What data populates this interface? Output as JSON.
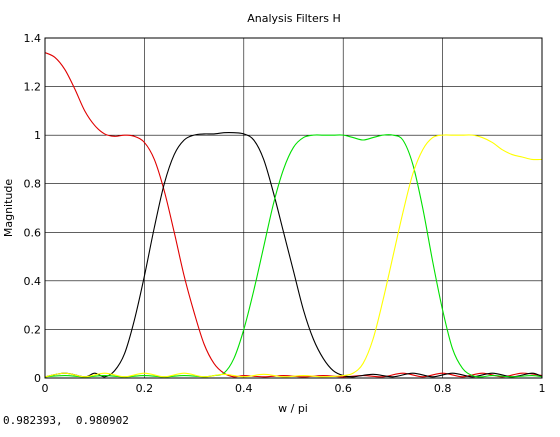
{
  "chart_data": {
    "type": "line",
    "title": "Analysis Filters H",
    "xlabel": "w / pi",
    "ylabel": "Magnitude",
    "xlim": [
      0,
      1
    ],
    "ylim": [
      0,
      1.4
    ],
    "xticks": [
      "0",
      "0.2",
      "0.4",
      "0.6",
      "0.8",
      "1"
    ],
    "yticks": [
      "0",
      "0.2",
      "0.4",
      "0.6",
      "0.8",
      "1",
      "1.2",
      "1.4"
    ],
    "grid": true,
    "legend": "none",
    "series": [
      {
        "color": "#e00000",
        "x": [
          0,
          0.02,
          0.04,
          0.06,
          0.08,
          0.1,
          0.12,
          0.14,
          0.16,
          0.18,
          0.2,
          0.22,
          0.24,
          0.26,
          0.28,
          0.3,
          0.32,
          0.34,
          0.36,
          0.38,
          0.4,
          0.44,
          0.48,
          0.52,
          0.56,
          0.6,
          0.64,
          0.68,
          0.72,
          0.76,
          0.8,
          0.84,
          0.88,
          0.92,
          0.96,
          1.0
        ],
        "values": [
          1.34,
          1.32,
          1.27,
          1.19,
          1.1,
          1.04,
          1.005,
          0.995,
          1.0,
          0.995,
          0.97,
          0.9,
          0.77,
          0.6,
          0.42,
          0.27,
          0.14,
          0.06,
          0.02,
          0.005,
          0.01,
          0.005,
          0.01,
          0.005,
          0.01,
          0.005,
          0.01,
          0.005,
          0.02,
          0.005,
          0.02,
          0.005,
          0.02,
          0.005,
          0.02,
          0.01
        ]
      },
      {
        "color": "#000000",
        "x": [
          0,
          0.04,
          0.08,
          0.1,
          0.12,
          0.14,
          0.16,
          0.18,
          0.2,
          0.22,
          0.24,
          0.26,
          0.28,
          0.3,
          0.32,
          0.34,
          0.36,
          0.38,
          0.4,
          0.42,
          0.44,
          0.46,
          0.48,
          0.5,
          0.52,
          0.54,
          0.56,
          0.58,
          0.6,
          0.62,
          0.66,
          0.7,
          0.74,
          0.78,
          0.82,
          0.86,
          0.9,
          0.94,
          0.98,
          1.0
        ],
        "values": [
          0.005,
          0.02,
          0.005,
          0.02,
          0.005,
          0.03,
          0.1,
          0.24,
          0.42,
          0.62,
          0.8,
          0.92,
          0.98,
          1.0,
          1.005,
          1.005,
          1.01,
          1.01,
          1.005,
          0.98,
          0.9,
          0.76,
          0.6,
          0.44,
          0.28,
          0.16,
          0.08,
          0.03,
          0.01,
          0.005,
          0.015,
          0.005,
          0.02,
          0.005,
          0.02,
          0.005,
          0.02,
          0.005,
          0.02,
          0.005
        ]
      },
      {
        "color": "#00e000",
        "x": [
          0,
          0.04,
          0.08,
          0.12,
          0.16,
          0.2,
          0.24,
          0.28,
          0.32,
          0.34,
          0.36,
          0.38,
          0.4,
          0.42,
          0.44,
          0.46,
          0.48,
          0.5,
          0.52,
          0.54,
          0.56,
          0.58,
          0.6,
          0.62,
          0.64,
          0.66,
          0.68,
          0.7,
          0.72,
          0.74,
          0.76,
          0.78,
          0.8,
          0.82,
          0.84,
          0.86,
          0.88,
          0.9,
          0.94,
          0.98,
          1.0
        ],
        "values": [
          0.005,
          0.01,
          0.005,
          0.01,
          0.005,
          0.01,
          0.005,
          0.01,
          0.005,
          0.01,
          0.02,
          0.08,
          0.2,
          0.36,
          0.54,
          0.72,
          0.86,
          0.95,
          0.99,
          1.0,
          1.0,
          1.0,
          1.0,
          0.99,
          0.98,
          0.99,
          1.0,
          1.0,
          0.98,
          0.88,
          0.7,
          0.48,
          0.28,
          0.12,
          0.04,
          0.01,
          0.005,
          0.01,
          0.005,
          0.01,
          0.005
        ]
      },
      {
        "color": "#ffff00",
        "x": [
          0,
          0.04,
          0.08,
          0.12,
          0.16,
          0.2,
          0.24,
          0.28,
          0.32,
          0.36,
          0.4,
          0.44,
          0.48,
          0.52,
          0.56,
          0.6,
          0.62,
          0.64,
          0.66,
          0.68,
          0.7,
          0.72,
          0.74,
          0.76,
          0.78,
          0.8,
          0.82,
          0.84,
          0.86,
          0.88,
          0.9,
          0.92,
          0.94,
          0.96,
          0.98,
          1.0
        ],
        "values": [
          0.005,
          0.02,
          0.005,
          0.02,
          0.005,
          0.02,
          0.005,
          0.02,
          0.005,
          0.015,
          0.005,
          0.015,
          0.005,
          0.01,
          0.005,
          0.01,
          0.02,
          0.06,
          0.16,
          0.32,
          0.5,
          0.68,
          0.84,
          0.94,
          0.99,
          1.0,
          1.0,
          1.0,
          1.0,
          0.99,
          0.97,
          0.94,
          0.92,
          0.91,
          0.9,
          0.9
        ]
      }
    ]
  },
  "status": {
    "readout": "0.982393,  0.980902"
  }
}
